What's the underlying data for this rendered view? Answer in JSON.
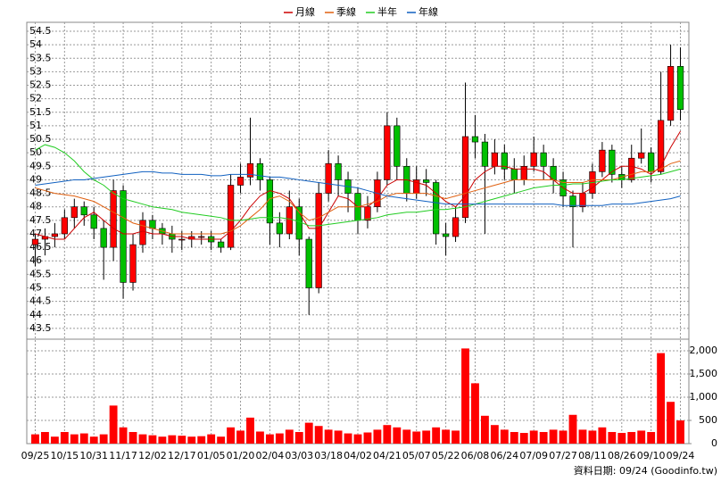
{
  "chart_data": [
    {
      "type": "candlestick",
      "categories": [
        "09/25",
        null,
        null,
        "10/15",
        null,
        null,
        "10/31",
        null,
        null,
        "11/17",
        null,
        null,
        "12/02",
        null,
        null,
        "12/17",
        null,
        null,
        "01/05",
        null,
        null,
        "01/20",
        null,
        null,
        "02/04",
        null,
        null,
        "03/03",
        null,
        null,
        "03/18",
        null,
        null,
        "04/02",
        null,
        null,
        "04/21",
        null,
        null,
        "05/07",
        null,
        null,
        "05/22",
        null,
        null,
        "06/08",
        null,
        null,
        "06/24",
        null,
        null,
        "07/09",
        null,
        null,
        "07/27",
        null,
        null,
        "08/11",
        null,
        null,
        "08/26",
        null,
        null,
        "09/10",
        null,
        null,
        "09/24"
      ],
      "open": [
        46.6,
        46.8,
        46.9,
        47.0,
        47.6,
        48.0,
        47.7,
        47.2,
        46.5,
        48.6,
        45.2,
        46.6,
        47.5,
        47.2,
        47.0,
        46.8,
        46.8,
        46.9,
        46.9,
        46.7,
        46.5,
        48.8,
        49.1,
        49.6,
        49.0,
        47.4,
        47.0,
        48.0,
        46.8,
        45.0,
        48.5,
        49.6,
        49.0,
        48.5,
        47.5,
        48.0,
        49.0,
        51.0,
        49.5,
        48.5,
        49.0,
        48.9,
        47.0,
        46.9,
        47.6,
        50.6,
        50.4,
        49.5,
        50.0,
        49.4,
        49.0,
        49.5,
        50.0,
        49.5,
        49.0,
        48.4,
        48.0,
        48.5,
        49.3,
        50.1,
        49.2,
        49.0,
        49.8,
        50.0,
        49.3,
        51.2,
        53.2
      ],
      "high": [
        47.0,
        47.2,
        47.4,
        47.9,
        48.3,
        48.2,
        48.0,
        47.5,
        49.0,
        48.8,
        47.0,
        47.8,
        47.7,
        47.4,
        47.3,
        47.1,
        47.1,
        47.1,
        47.1,
        46.8,
        49.2,
        49.6,
        51.3,
        49.8,
        49.1,
        47.8,
        48.6,
        48.3,
        46.9,
        48.9,
        50.1,
        49.9,
        49.3,
        48.7,
        48.4,
        49.3,
        51.5,
        51.3,
        49.8,
        49.5,
        49.4,
        49.0,
        47.4,
        48.0,
        52.6,
        51.4,
        50.7,
        50.5,
        50.3,
        49.8,
        49.9,
        50.6,
        50.3,
        49.8,
        49.3,
        48.6,
        48.9,
        49.6,
        50.4,
        50.3,
        49.5,
        50.3,
        50.9,
        50.2,
        53.0,
        54.0,
        53.9
      ],
      "low": [
        45.8,
        46.2,
        46.5,
        46.8,
        47.2,
        47.3,
        46.8,
        45.3,
        46.0,
        44.6,
        44.9,
        46.3,
        46.8,
        46.6,
        46.3,
        46.4,
        46.5,
        46.6,
        46.4,
        46.3,
        46.4,
        48.5,
        48.8,
        48.6,
        46.6,
        46.5,
        46.8,
        46.2,
        44.0,
        44.8,
        48.2,
        48.4,
        47.8,
        47.0,
        47.2,
        47.8,
        48.8,
        49.0,
        48.2,
        48.3,
        48.4,
        46.6,
        46.2,
        46.7,
        47.4,
        49.8,
        47.0,
        49.2,
        49.0,
        48.5,
        48.8,
        49.3,
        49.0,
        48.5,
        48.0,
        46.5,
        47.8,
        48.3,
        49.1,
        48.9,
        48.7,
        48.9,
        49.6,
        48.9,
        49.2,
        51.0,
        51.2
      ],
      "close": [
        46.8,
        46.9,
        47.0,
        47.6,
        48.0,
        47.7,
        47.2,
        46.5,
        48.6,
        45.2,
        46.6,
        47.5,
        47.2,
        47.0,
        46.8,
        46.8,
        46.9,
        46.9,
        46.7,
        46.5,
        48.8,
        49.1,
        49.6,
        49.0,
        47.4,
        47.0,
        48.0,
        46.8,
        45.0,
        48.5,
        49.6,
        49.0,
        48.5,
        47.5,
        48.0,
        49.0,
        51.0,
        49.5,
        48.5,
        49.0,
        48.9,
        47.0,
        46.9,
        47.6,
        50.6,
        50.4,
        49.5,
        50.0,
        49.4,
        49.0,
        49.5,
        50.0,
        49.5,
        49.0,
        48.4,
        48.0,
        48.5,
        49.3,
        50.1,
        49.2,
        49.0,
        49.8,
        50.0,
        49.3,
        51.2,
        53.2,
        51.6
      ],
      "up_color": "#ff0000",
      "down_color": "#00c000",
      "series": [
        {
          "name": "月線",
          "color": "#cc0000",
          "values": [
            47.0,
            46.9,
            46.8,
            46.8,
            47.2,
            47.6,
            47.8,
            47.5,
            47.2,
            47.0,
            47.0,
            47.1,
            47.0,
            47.0,
            46.9,
            46.9,
            46.8,
            46.8,
            46.8,
            46.8,
            47.1,
            47.5,
            48.0,
            48.4,
            48.6,
            48.5,
            48.3,
            47.8,
            47.2,
            47.2,
            47.8,
            48.4,
            48.3,
            48.0,
            48.0,
            48.3,
            48.8,
            49.0,
            49.0,
            48.9,
            48.8,
            48.5,
            48.2,
            48.0,
            48.4,
            49.0,
            49.3,
            49.5,
            49.5,
            49.4,
            49.4,
            49.4,
            49.3,
            49.0,
            48.7,
            48.5,
            48.5,
            48.7,
            49.0,
            49.3,
            49.5,
            49.5,
            49.4,
            49.2,
            49.5,
            50.2,
            50.8
          ]
        },
        {
          "name": "季線",
          "color": "#e06010",
          "values": [
            48.7,
            48.6,
            48.5,
            48.45,
            48.4,
            48.3,
            48.2,
            48.0,
            47.8,
            47.6,
            47.4,
            47.3,
            47.2,
            47.1,
            47.0,
            47.0,
            47.0,
            47.0,
            47.0,
            47.0,
            47.1,
            47.3,
            47.6,
            47.9,
            48.3,
            48.4,
            48.2,
            47.8,
            47.5,
            47.6,
            47.8,
            48.0,
            48.0,
            48.0,
            48.1,
            48.2,
            48.4,
            48.5,
            48.5,
            48.5,
            48.5,
            48.4,
            48.3,
            48.4,
            48.5,
            48.6,
            48.7,
            48.8,
            48.9,
            49.0,
            49.0,
            49.0,
            49.0,
            49.0,
            48.9,
            48.9,
            48.9,
            49.0,
            49.0,
            49.0,
            49.1,
            49.2,
            49.3,
            49.3,
            49.4,
            49.6,
            49.7
          ]
        },
        {
          "name": "半年",
          "color": "#22cc22",
          "values": [
            50.1,
            50.3,
            50.2,
            50.0,
            49.7,
            49.3,
            49.0,
            48.8,
            48.5,
            48.3,
            48.2,
            48.1,
            48.0,
            47.95,
            47.9,
            47.8,
            47.75,
            47.7,
            47.65,
            47.6,
            47.5,
            47.5,
            47.55,
            47.6,
            47.6,
            47.6,
            47.55,
            47.45,
            47.3,
            47.3,
            47.35,
            47.4,
            47.45,
            47.5,
            47.55,
            47.6,
            47.7,
            47.75,
            47.8,
            47.8,
            47.85,
            47.9,
            47.9,
            47.95,
            48.0,
            48.1,
            48.2,
            48.3,
            48.4,
            48.5,
            48.6,
            48.7,
            48.75,
            48.8,
            48.8,
            48.85,
            48.85,
            48.9,
            48.95,
            49.0,
            49.0,
            49.05,
            49.1,
            49.15,
            49.2,
            49.3,
            49.4
          ]
        },
        {
          "name": "年線",
          "color": "#1060c0",
          "values": [
            48.8,
            48.85,
            48.9,
            48.95,
            49.0,
            49.0,
            49.05,
            49.1,
            49.15,
            49.2,
            49.25,
            49.3,
            49.3,
            49.25,
            49.25,
            49.2,
            49.2,
            49.2,
            49.15,
            49.15,
            49.2,
            49.2,
            49.2,
            49.15,
            49.1,
            49.1,
            49.05,
            49.0,
            48.95,
            48.9,
            48.85,
            48.8,
            48.75,
            48.7,
            48.6,
            48.5,
            48.4,
            48.35,
            48.3,
            48.25,
            48.2,
            48.15,
            48.1,
            48.1,
            48.1,
            48.1,
            48.1,
            48.1,
            48.1,
            48.1,
            48.1,
            48.1,
            48.1,
            48.1,
            48.05,
            48.05,
            48.05,
            48.05,
            48.05,
            48.1,
            48.1,
            48.1,
            48.15,
            48.2,
            48.25,
            48.3,
            48.4
          ]
        }
      ],
      "ylim": [
        43.1,
        54.83
      ],
      "yticks": [
        43.5,
        44,
        44.5,
        45,
        45.5,
        46,
        46.5,
        47,
        47.5,
        48,
        48.5,
        49,
        49.5,
        50,
        50.5,
        51,
        51.5,
        52,
        52.5,
        53,
        53.5,
        54,
        54.5
      ],
      "grid": true
    },
    {
      "type": "bar",
      "color": "#ff0000",
      "values": [
        200,
        250,
        150,
        250,
        200,
        220,
        150,
        200,
        820,
        350,
        250,
        200,
        180,
        150,
        180,
        170,
        150,
        160,
        200,
        150,
        350,
        280,
        560,
        260,
        200,
        220,
        300,
        250,
        450,
        380,
        300,
        280,
        220,
        200,
        240,
        300,
        400,
        350,
        300,
        260,
        280,
        350,
        300,
        280,
        2050,
        1300,
        600,
        400,
        300,
        250,
        230,
        280,
        250,
        300,
        280,
        620,
        300,
        280,
        350,
        250,
        230,
        250,
        280,
        250,
        1950,
        900,
        500
      ],
      "ylim": [
        0,
        2250
      ],
      "yticks": [
        0,
        500,
        {
          "value": 1000,
          "label": "1,000"
        },
        {
          "value": 1500,
          "label": "1,500"
        },
        {
          "value": 2000,
          "label": "2,000"
        }
      ],
      "grid": true
    }
  ],
  "footer": "資料日期: 09/24 (Goodinfo.tw)"
}
